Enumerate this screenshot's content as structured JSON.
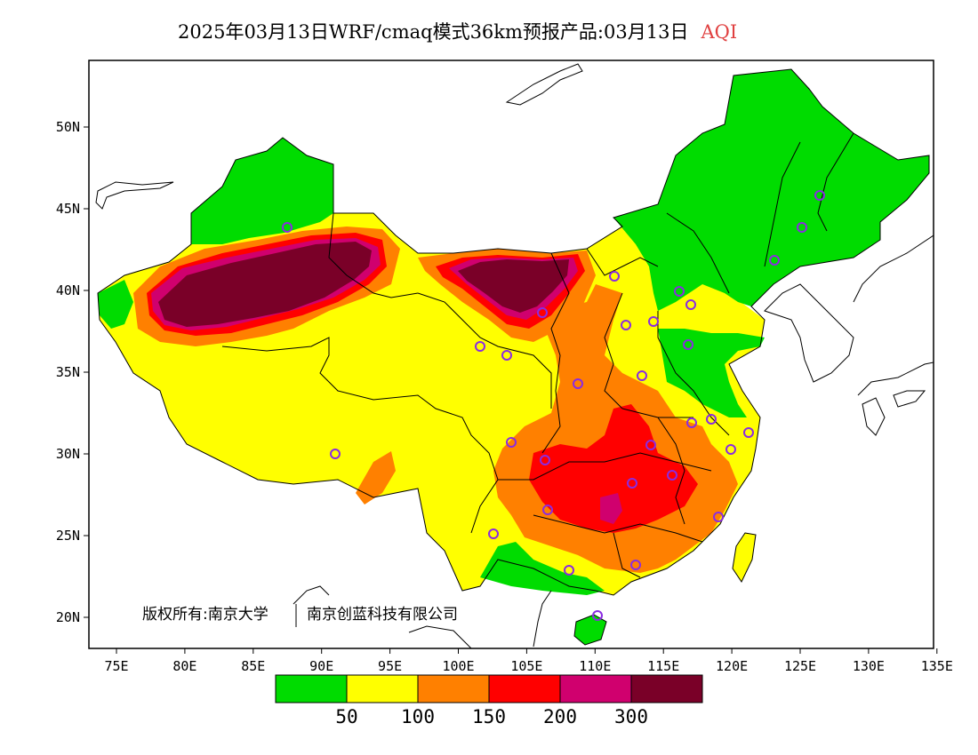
{
  "title": {
    "main": "2025年03月13日WRF/cmaq模式36km预报产品:03月13日",
    "variable": "AQI"
  },
  "axes": {
    "lon_labels": [
      "75E",
      "80E",
      "85E",
      "90E",
      "95E",
      "100E",
      "105E",
      "110E",
      "115E",
      "120E",
      "125E",
      "130E",
      "135E"
    ],
    "lat_labels": [
      "20N",
      "25N",
      "30N",
      "35N",
      "40N",
      "45N",
      "50N"
    ]
  },
  "legend": {
    "colors": [
      "#00dc00",
      "#ffff00",
      "#ff8000",
      "#ff0000",
      "#d0006e",
      "#7a0028"
    ],
    "labels": [
      "50",
      "100",
      "150",
      "200",
      "300"
    ]
  },
  "copyright": {
    "owner1": "版权所有:南京大学",
    "owner2": "南京创蓝科技有限公司"
  }
}
